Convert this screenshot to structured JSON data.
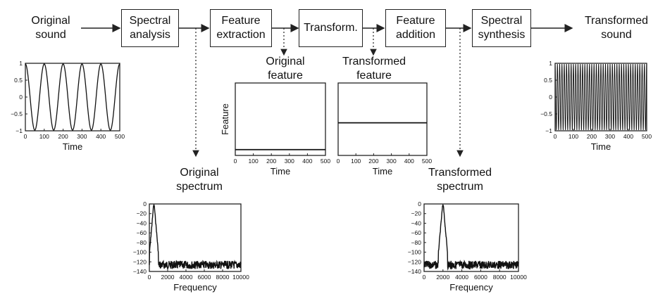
{
  "stages": {
    "input": {
      "line1": "Original",
      "line2": "sound"
    },
    "output": {
      "line1": "Transformed",
      "line2": "sound"
    },
    "boxes": [
      {
        "line1": "Spectral",
        "line2": "analysis"
      },
      {
        "line1": "Feature",
        "line2": "extraction"
      },
      {
        "line1": "Transform.",
        "line2": ""
      },
      {
        "line1": "Feature",
        "line2": "addition"
      },
      {
        "line1": "Spectral",
        "line2": "synthesis"
      }
    ]
  },
  "labels": {
    "original_feature": {
      "line1": "Original",
      "line2": "feature"
    },
    "transformed_feature": {
      "line1": "Transformed",
      "line2": "feature"
    },
    "original_spectrum": {
      "line1": "Original",
      "line2": "spectrum"
    },
    "transformed_spectrum": {
      "line1": "Transformed",
      "line2": "spectrum"
    }
  },
  "plots": {
    "original_wave": {
      "xlabel": "Time",
      "xticks": [
        "0",
        "100",
        "200",
        "300",
        "400",
        "500"
      ],
      "yticks": [
        "1",
        "0.5",
        "0",
        "−0.5",
        "−1"
      ],
      "cycles": 5
    },
    "transformed_wave": {
      "xlabel": "Time",
      "xticks": [
        "0",
        "100",
        "200",
        "300",
        "400",
        "500"
      ],
      "yticks": [
        "1",
        "0.5",
        "0",
        "−0.5",
        "−1"
      ],
      "cycles": 40
    },
    "original_feature": {
      "xlabel": "Time",
      "ylabel": "Feature",
      "xticks": [
        "0",
        "100",
        "200",
        "300",
        "400",
        "500"
      ],
      "level": 0.08
    },
    "transformed_feature": {
      "xlabel": "Time",
      "xticks": [
        "0",
        "100",
        "200",
        "300",
        "400",
        "500"
      ],
      "level": 0.45
    },
    "original_spectrum": {
      "xlabel": "Frequency",
      "xticks": [
        "0",
        "2000",
        "4000",
        "6000",
        "8000",
        "10000"
      ],
      "yticks": [
        "0",
        "−20",
        "−40",
        "−60",
        "−80",
        "−100",
        "−120",
        "−140"
      ],
      "peak_hz": 500
    },
    "transformed_spectrum": {
      "xlabel": "Frequency",
      "xticks": [
        "0",
        "2000",
        "4000",
        "6000",
        "8000",
        "10000"
      ],
      "yticks": [
        "0",
        "−20",
        "−40",
        "−60",
        "−80",
        "−100",
        "−120",
        "−140"
      ],
      "peak_hz": 2000
    }
  }
}
